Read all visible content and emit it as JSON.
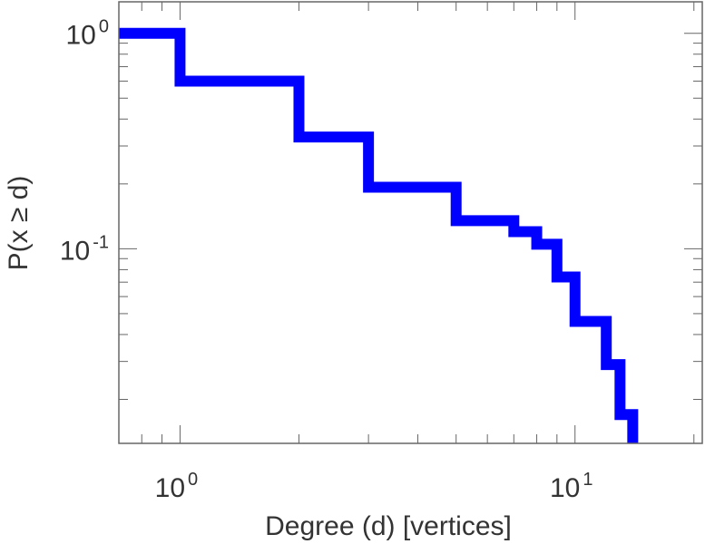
{
  "chart_data": {
    "type": "line",
    "title": "",
    "xlabel": "Degree (d) [vertices]",
    "ylabel": "P(x ≥ d)",
    "x_scale": "log",
    "y_scale": "log",
    "xlim": [
      0.7,
      21
    ],
    "ylim": [
      0.0125,
      1.4
    ],
    "grid": false,
    "legend": "none",
    "line_color": "#0000ff",
    "step_style": "post",
    "x_ticks": [
      {
        "value": 1,
        "base": "10",
        "exp": "0"
      },
      {
        "value": 10,
        "base": "10",
        "exp": "1"
      }
    ],
    "y_ticks": [
      {
        "value": 1,
        "base": "10",
        "exp": "0"
      },
      {
        "value": 0.1,
        "base": "10",
        "exp": "-1"
      }
    ],
    "series": [
      {
        "x": [
          0.7,
          1,
          2,
          3,
          5,
          7,
          8,
          9,
          10,
          12,
          13,
          14
        ],
        "values": [
          1.0,
          0.6,
          0.33,
          0.193,
          0.135,
          0.12,
          0.105,
          0.074,
          0.046,
          0.029,
          0.017,
          0.0125
        ]
      }
    ]
  }
}
